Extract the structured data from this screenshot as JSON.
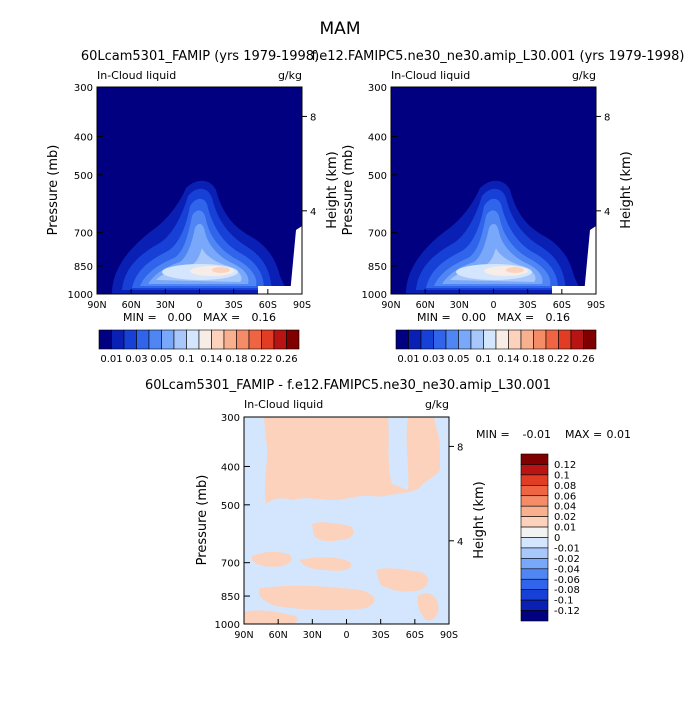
{
  "page_title": "MAM",
  "colors": {
    "ramp_ctrl": [
      "#000080",
      "#0a1fb3",
      "#1640d6",
      "#2f64eb",
      "#4f86f4",
      "#79a8fa",
      "#a8c8fb",
      "#d3e6fd",
      "#f8ede6",
      "#fcd2bc",
      "#f9b08e",
      "#f58c68",
      "#ef6543",
      "#e13c24",
      "#b81414",
      "#800000"
    ],
    "ramp_diff": [
      "#000080",
      "#0a1fb3",
      "#1640d6",
      "#2f64eb",
      "#4f86f4",
      "#79a8fa",
      "#a8c8fb",
      "#d3e6fd",
      "#f2f2f2",
      "#fcd2bc",
      "#f9b08e",
      "#f58c68",
      "#ef6543",
      "#e13c24",
      "#b81414",
      "#800000"
    ]
  },
  "chart_data": [
    {
      "type": "heatmap",
      "title": "60Lcam5301_FAMIP (yrs 1979-1998)",
      "left_label": "In-Cloud liquid",
      "right_label": "g/kg",
      "ylabel": "Pressure (mb)",
      "ylabel_right": "Height (km)",
      "x_ticks": [
        "90N",
        "60N",
        "30N",
        "0",
        "30S",
        "60S",
        "90S"
      ],
      "y_ticks": [
        "300",
        "400",
        "500",
        "700",
        "850",
        "1000"
      ],
      "y_ticks_right": [
        "8",
        "4"
      ],
      "stats": {
        "min_label": "MIN =",
        "min": "0.00",
        "max_label": "MAX =",
        "max": "0.16"
      },
      "levels": [
        "0.01",
        "0.03",
        "0.05",
        "0.1",
        "0.14",
        "0.18",
        "0.22",
        "0.26"
      ],
      "ylim": [
        1000,
        300
      ]
    },
    {
      "type": "heatmap",
      "title": "f.e12.FAMIPC5.ne30_ne30.amip_L30.001 (yrs 1979-1998)",
      "left_label": "In-Cloud liquid",
      "right_label": "g/kg",
      "ylabel": "Pressure (mb)",
      "ylabel_right": "Height (km)",
      "x_ticks": [
        "90N",
        "60N",
        "30N",
        "0",
        "30S",
        "60S",
        "90S"
      ],
      "y_ticks": [
        "300",
        "400",
        "500",
        "700",
        "850",
        "1000"
      ],
      "y_ticks_right": [
        "8",
        "4"
      ],
      "stats": {
        "min_label": "MIN =",
        "min": "0.00",
        "max_label": "MAX =",
        "max": "0.16"
      },
      "levels": [
        "0.01",
        "0.03",
        "0.05",
        "0.1",
        "0.14",
        "0.18",
        "0.22",
        "0.26"
      ],
      "ylim": [
        1000,
        300
      ]
    },
    {
      "type": "heatmap",
      "title": "60Lcam5301_FAMIP - f.e12.FAMIPC5.ne30_ne30.amip_L30.001",
      "left_label": "In-Cloud liquid",
      "right_label": "g/kg",
      "ylabel": "Pressure (mb)",
      "ylabel_right": "Height (km)",
      "x_ticks": [
        "90N",
        "60N",
        "30N",
        "0",
        "30S",
        "60S",
        "90S"
      ],
      "y_ticks": [
        "300",
        "400",
        "500",
        "700",
        "850",
        "1000"
      ],
      "y_ticks_right": [
        "8",
        "4"
      ],
      "stats": {
        "min_label": "MIN =",
        "min": "-0.01",
        "max_label": "MAX =",
        "max": "0.01"
      },
      "levels": [
        "0.12",
        "0.1",
        "0.08",
        "0.06",
        "0.04",
        "0.02",
        "0.01",
        "0",
        "-0.01",
        "-0.02",
        "-0.04",
        "-0.06",
        "-0.08",
        "-0.1",
        "-0.12"
      ],
      "ylim": [
        1000,
        300
      ]
    }
  ]
}
